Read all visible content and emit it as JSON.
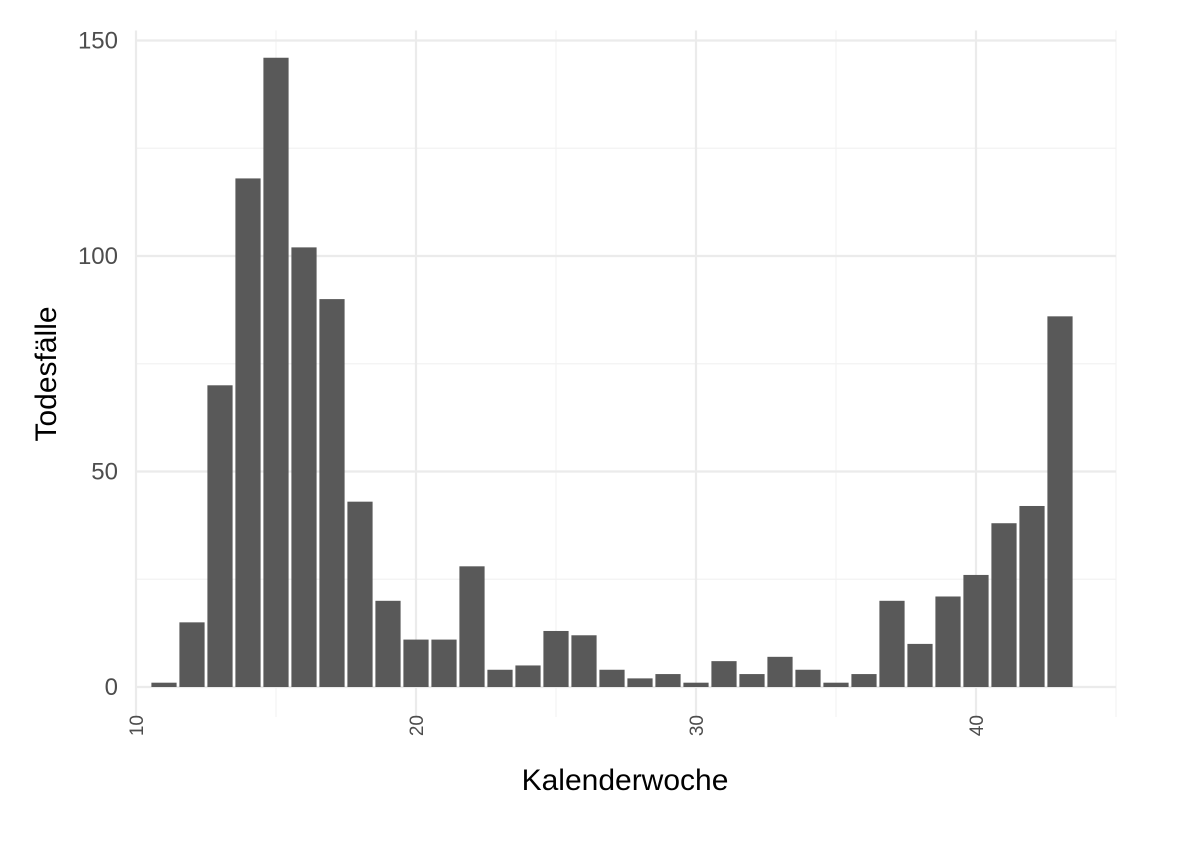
{
  "chart_data": {
    "type": "bar",
    "xlabel": "Kalenderwoche",
    "ylabel": "Todesfälle",
    "x": [
      11,
      12,
      13,
      14,
      15,
      16,
      17,
      18,
      19,
      20,
      21,
      22,
      23,
      24,
      25,
      26,
      27,
      28,
      29,
      30,
      31,
      32,
      33,
      34,
      35,
      36,
      37,
      38,
      39,
      40,
      41,
      42,
      43
    ],
    "values": [
      1,
      15,
      70,
      118,
      146,
      102,
      90,
      43,
      20,
      11,
      11,
      28,
      4,
      5,
      13,
      12,
      4,
      2,
      3,
      1,
      6,
      3,
      7,
      4,
      1,
      3,
      20,
      10,
      21,
      26,
      38,
      42,
      86
    ],
    "xlim": [
      10,
      45
    ],
    "ylim": [
      0,
      150
    ],
    "x_ticks": [
      10,
      20,
      30,
      40
    ],
    "y_ticks": [
      0,
      50,
      100,
      150
    ],
    "grid": true,
    "bar_color": "#595959",
    "grid_color": "#ebebeb",
    "background": "#ffffff"
  }
}
